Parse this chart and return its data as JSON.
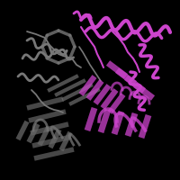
{
  "background_color": "#000000",
  "helix_color_purple": "#cc44cc",
  "helix_color_gray": "#777777",
  "strand_color_purple": "#bb33bb",
  "strand_color_gray": "#666666",
  "figsize": [
    2.0,
    2.0
  ],
  "dpi": 100
}
